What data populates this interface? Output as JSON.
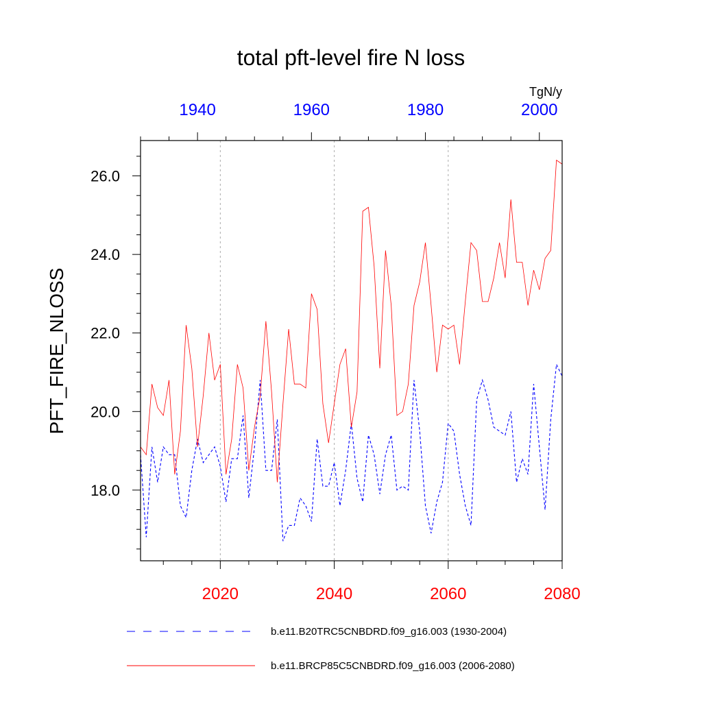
{
  "colors": {
    "historical": "#0000ff",
    "future": "#ff0000",
    "axis": "#000000",
    "grid": "#aaaaaa"
  },
  "chart_data": {
    "type": "line",
    "title": "total pft-level fire N loss",
    "ylabel": "PFT_FIRE_NLOSS",
    "units": "TgN/y",
    "ylim": [
      16.2,
      26.9
    ],
    "yticks": [
      18.0,
      20.0,
      22.0,
      24.0,
      26.0
    ],
    "yticklabels": [
      "18.0",
      "20.0",
      "22.0",
      "24.0",
      "26.0"
    ],
    "ygrid": false,
    "bottom_axis": {
      "range": [
        2006,
        2080
      ],
      "ticks": [
        2020,
        2040,
        2060,
        2080
      ],
      "ticklabels": [
        "2020",
        "2040",
        "2060",
        "2080"
      ],
      "color": "#ff0000",
      "gridlines": true
    },
    "top_axis": {
      "range": [
        1930,
        2004
      ],
      "ticks": [
        1940,
        1960,
        1980,
        2000
      ],
      "ticklabels": [
        "1940",
        "1960",
        "1980",
        "2000"
      ],
      "color": "#0000ff"
    },
    "series": [
      {
        "name": "b.e11.B20TRC5CNBDRD.f09_g16.003 (1930-2004)",
        "style": "dashed",
        "color": "#0000ff",
        "axis": "top",
        "x_start": 1930,
        "values": [
          18.9,
          16.8,
          19.1,
          18.2,
          19.1,
          18.9,
          18.9,
          17.6,
          17.3,
          18.5,
          19.3,
          18.7,
          18.9,
          19.1,
          18.6,
          17.7,
          18.8,
          18.8,
          19.9,
          17.8,
          19.1,
          20.8,
          18.5,
          18.5,
          19.8,
          16.7,
          17.1,
          17.1,
          17.8,
          17.6,
          17.2,
          19.3,
          18.1,
          18.1,
          18.7,
          17.6,
          18.5,
          19.7,
          18.3,
          17.7,
          19.4,
          18.9,
          17.9,
          18.9,
          19.4,
          18.0,
          18.1,
          18.0,
          20.8,
          19.5,
          17.6,
          16.9,
          17.7,
          18.2,
          19.7,
          19.5,
          18.4,
          17.6,
          17.1,
          20.3,
          20.8,
          20.3,
          19.6,
          19.5,
          19.4,
          20.0,
          18.2,
          18.8,
          18.4,
          20.7,
          19.1,
          17.5,
          19.8,
          21.2,
          20.9
        ]
      },
      {
        "name": "b.e11.BRCP85C5CNBDRD.f09_g16.003 (2006-2080)",
        "style": "solid",
        "color": "#ff0000",
        "axis": "bottom",
        "x_start": 2006,
        "values": [
          19.1,
          18.9,
          20.7,
          20.1,
          19.9,
          20.8,
          18.4,
          19.5,
          22.2,
          21.1,
          19.1,
          20.4,
          22.0,
          20.8,
          21.2,
          18.4,
          19.3,
          21.2,
          20.6,
          18.5,
          19.6,
          20.4,
          22.3,
          20.5,
          18.2,
          20.2,
          22.1,
          20.7,
          20.7,
          20.6,
          23.0,
          22.6,
          20.2,
          19.2,
          20.2,
          21.2,
          21.6,
          19.6,
          20.5,
          25.1,
          25.2,
          23.7,
          21.1,
          24.1,
          22.7,
          19.9,
          20.0,
          20.7,
          22.7,
          23.3,
          24.3,
          22.7,
          21.0,
          22.2,
          22.1,
          22.2,
          21.2,
          22.8,
          24.3,
          24.1,
          22.8,
          22.8,
          23.4,
          24.3,
          23.4,
          25.4,
          23.8,
          23.8,
          22.7,
          23.6,
          23.1,
          23.9,
          24.1,
          26.4,
          26.3
        ]
      }
    ]
  }
}
